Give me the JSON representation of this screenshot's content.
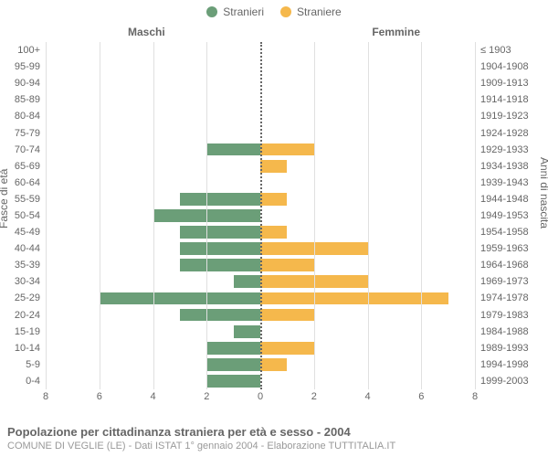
{
  "colors": {
    "male": "#6b9e78",
    "female": "#f5b84c",
    "grid": "#e0e0e0",
    "axis_zero": "#666666",
    "text": "#666666",
    "subtext": "#999999",
    "background": "#ffffff"
  },
  "legend": {
    "male": "Stranieri",
    "female": "Straniere"
  },
  "side_titles": {
    "left": "Maschi",
    "right": "Femmine"
  },
  "yaxis_left_title": "Fasce di età",
  "yaxis_right_title": "Anni di nascita",
  "xaxis": {
    "max": 8,
    "ticks": [
      8,
      6,
      4,
      2,
      0,
      2,
      4,
      6,
      8
    ]
  },
  "rows": [
    {
      "age": "100+",
      "birth": "≤ 1903",
      "m": 0,
      "f": 0
    },
    {
      "age": "95-99",
      "birth": "1904-1908",
      "m": 0,
      "f": 0
    },
    {
      "age": "90-94",
      "birth": "1909-1913",
      "m": 0,
      "f": 0
    },
    {
      "age": "85-89",
      "birth": "1914-1918",
      "m": 0,
      "f": 0
    },
    {
      "age": "80-84",
      "birth": "1919-1923",
      "m": 0,
      "f": 0
    },
    {
      "age": "75-79",
      "birth": "1924-1928",
      "m": 0,
      "f": 0
    },
    {
      "age": "70-74",
      "birth": "1929-1933",
      "m": 2,
      "f": 2
    },
    {
      "age": "65-69",
      "birth": "1934-1938",
      "m": 0,
      "f": 1
    },
    {
      "age": "60-64",
      "birth": "1939-1943",
      "m": 0,
      "f": 0
    },
    {
      "age": "55-59",
      "birth": "1944-1948",
      "m": 3,
      "f": 1
    },
    {
      "age": "50-54",
      "birth": "1949-1953",
      "m": 4,
      "f": 0
    },
    {
      "age": "45-49",
      "birth": "1954-1958",
      "m": 3,
      "f": 1
    },
    {
      "age": "40-44",
      "birth": "1959-1963",
      "m": 3,
      "f": 4
    },
    {
      "age": "35-39",
      "birth": "1964-1968",
      "m": 3,
      "f": 2
    },
    {
      "age": "30-34",
      "birth": "1969-1973",
      "m": 1,
      "f": 4
    },
    {
      "age": "25-29",
      "birth": "1974-1978",
      "m": 6,
      "f": 7
    },
    {
      "age": "20-24",
      "birth": "1979-1983",
      "m": 3,
      "f": 2
    },
    {
      "age": "15-19",
      "birth": "1984-1988",
      "m": 1,
      "f": 0
    },
    {
      "age": "10-14",
      "birth": "1989-1993",
      "m": 2,
      "f": 2
    },
    {
      "age": "5-9",
      "birth": "1994-1998",
      "m": 2,
      "f": 1
    },
    {
      "age": "0-4",
      "birth": "1999-2003",
      "m": 2,
      "f": 0
    }
  ],
  "caption": {
    "title": "Popolazione per cittadinanza straniera per età e sesso - 2004",
    "subtitle": "COMUNE DI VEGLIE (LE) - Dati ISTAT 1° gennaio 2004 - Elaborazione TUTTITALIA.IT"
  }
}
